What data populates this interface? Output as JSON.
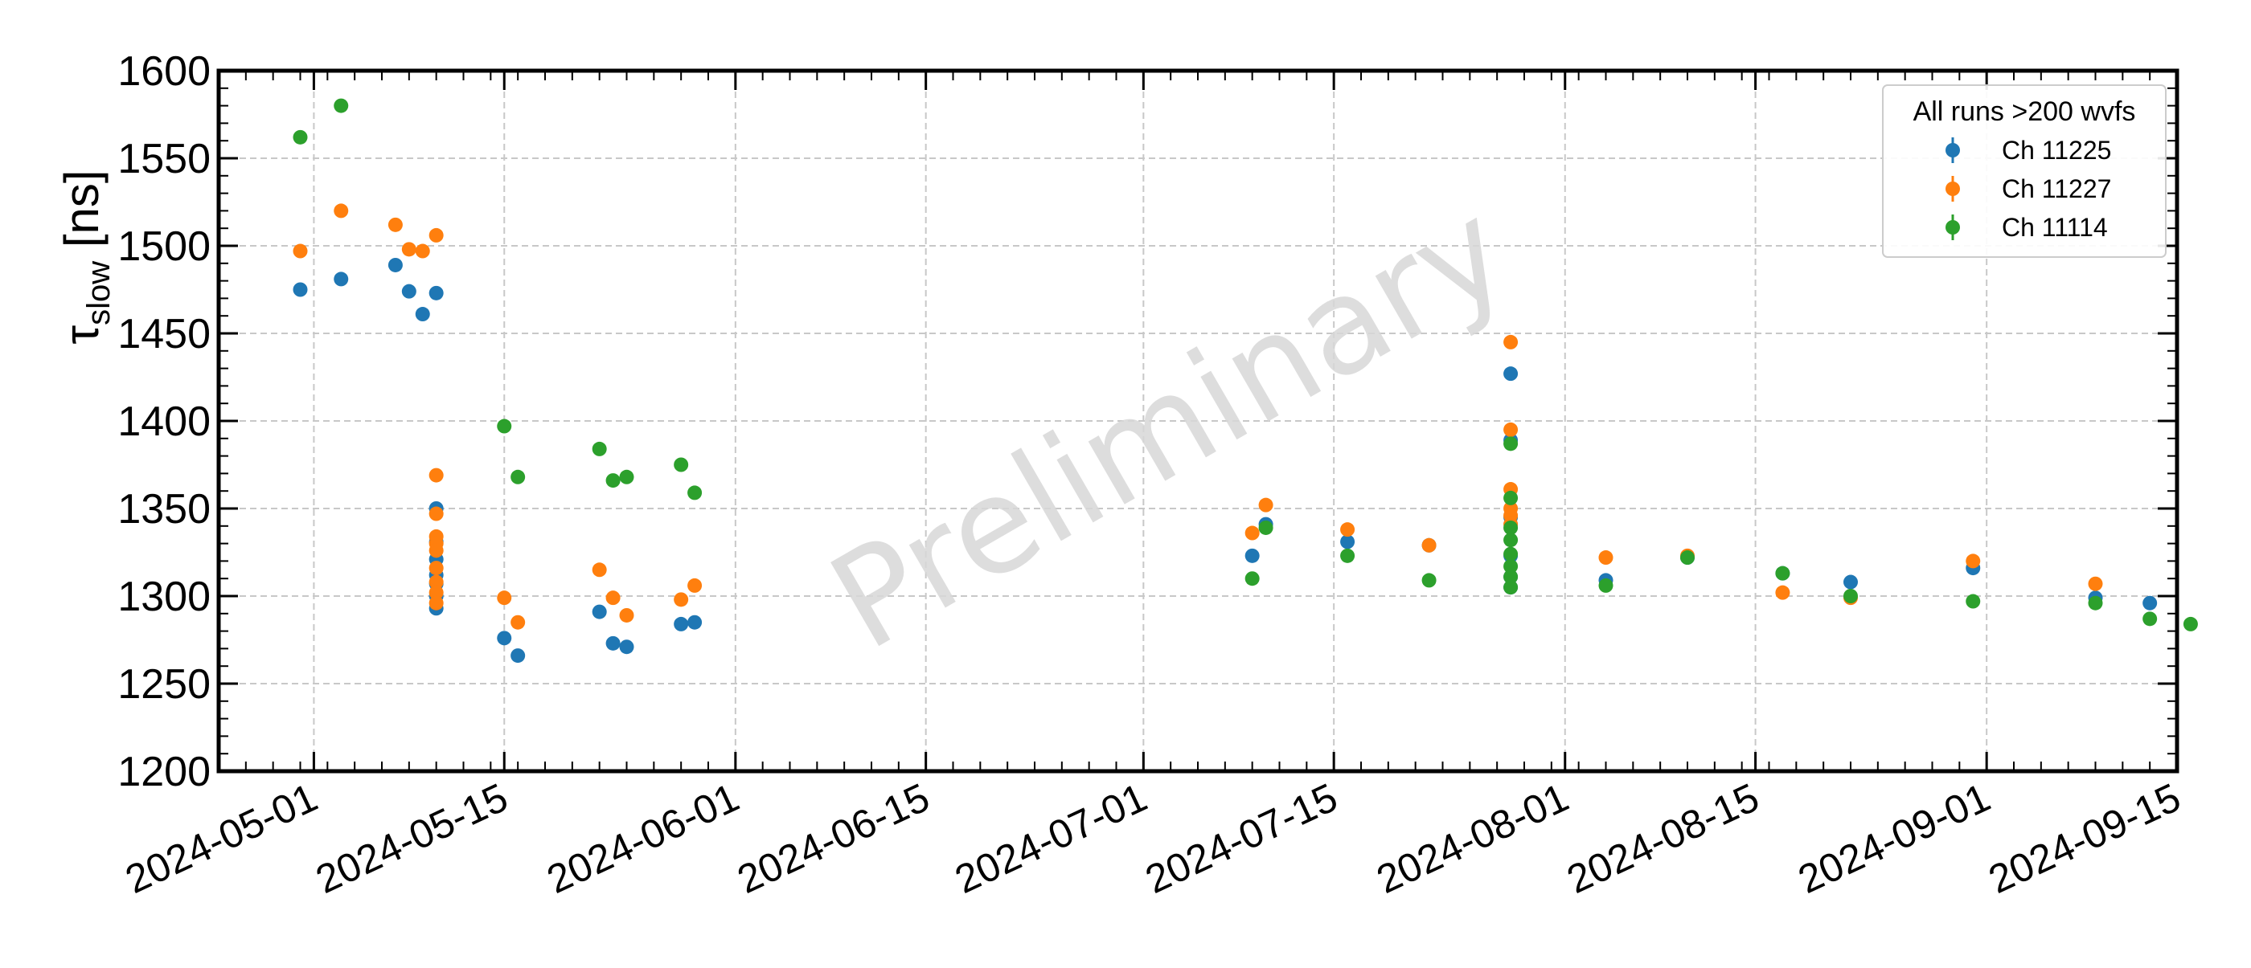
{
  "watermark": "Preliminary",
  "chart_data": {
    "type": "scatter",
    "ylabel": {
      "symbol": "τ",
      "subscript": "slow",
      "unit": "[ns]"
    },
    "ylim": [
      1200,
      1600
    ],
    "yticks": [
      1200,
      1250,
      1300,
      1350,
      1400,
      1450,
      1500,
      1550,
      1600
    ],
    "xlim": [
      "2024-04-24",
      "2024-09-15"
    ],
    "xticks": [
      "2024-05-01",
      "2024-05-15",
      "2024-06-01",
      "2024-06-15",
      "2024-07-01",
      "2024-07-15",
      "2024-08-01",
      "2024-08-15",
      "2024-09-01",
      "2024-09-15"
    ],
    "grid": true,
    "legend": {
      "title": "All runs >200 wvfs",
      "position": "top-right"
    },
    "series": [
      {
        "name": "Ch 11225",
        "color": "#1f77b4",
        "points": [
          [
            "2024-04-30",
            1475
          ],
          [
            "2024-05-03",
            1481
          ],
          [
            "2024-05-07",
            1489
          ],
          [
            "2024-05-08",
            1474
          ],
          [
            "2024-05-09",
            1461
          ],
          [
            "2024-05-10",
            1473
          ],
          [
            "2024-05-10",
            1350
          ],
          [
            "2024-05-10",
            1331
          ],
          [
            "2024-05-10",
            1321
          ],
          [
            "2024-05-10",
            1312
          ],
          [
            "2024-05-10",
            1307
          ],
          [
            "2024-05-10",
            1300
          ],
          [
            "2024-05-10",
            1293
          ],
          [
            "2024-05-15",
            1276
          ],
          [
            "2024-05-16",
            1266
          ],
          [
            "2024-05-22",
            1291
          ],
          [
            "2024-05-23",
            1273
          ],
          [
            "2024-05-24",
            1271
          ],
          [
            "2024-05-28",
            1284
          ],
          [
            "2024-05-29",
            1285
          ],
          [
            "2024-07-09",
            1323
          ],
          [
            "2024-07-10",
            1341
          ],
          [
            "2024-07-16",
            1331
          ],
          [
            "2024-07-22",
            1329
          ],
          [
            "2024-07-28",
            1427
          ],
          [
            "2024-07-28",
            1389
          ],
          [
            "2024-07-28",
            1345
          ],
          [
            "2024-07-28",
            1323
          ],
          [
            "2024-07-28",
            1311
          ],
          [
            "2024-07-28",
            1305
          ],
          [
            "2024-08-04",
            1309
          ],
          [
            "2024-08-10",
            1322
          ],
          [
            "2024-08-17",
            1313
          ],
          [
            "2024-08-22",
            1308
          ],
          [
            "2024-08-31",
            1316
          ],
          [
            "2024-09-09",
            1299
          ],
          [
            "2024-09-13",
            1296
          ]
        ]
      },
      {
        "name": "Ch 11227",
        "color": "#ff7f0e",
        "points": [
          [
            "2024-04-30",
            1497
          ],
          [
            "2024-05-03",
            1520
          ],
          [
            "2024-05-07",
            1512
          ],
          [
            "2024-05-08",
            1498
          ],
          [
            "2024-05-09",
            1497
          ],
          [
            "2024-05-10",
            1506
          ],
          [
            "2024-05-10",
            1369
          ],
          [
            "2024-05-10",
            1347
          ],
          [
            "2024-05-10",
            1334
          ],
          [
            "2024-05-10",
            1330
          ],
          [
            "2024-05-10",
            1326
          ],
          [
            "2024-05-10",
            1316
          ],
          [
            "2024-05-10",
            1308
          ],
          [
            "2024-05-10",
            1302
          ],
          [
            "2024-05-10",
            1296
          ],
          [
            "2024-05-15",
            1299
          ],
          [
            "2024-05-16",
            1285
          ],
          [
            "2024-05-22",
            1315
          ],
          [
            "2024-05-23",
            1299
          ],
          [
            "2024-05-24",
            1289
          ],
          [
            "2024-05-28",
            1298
          ],
          [
            "2024-05-29",
            1306
          ],
          [
            "2024-07-09",
            1336
          ],
          [
            "2024-07-10",
            1352
          ],
          [
            "2024-07-16",
            1338
          ],
          [
            "2024-07-22",
            1329
          ],
          [
            "2024-07-28",
            1445
          ],
          [
            "2024-07-28",
            1395
          ],
          [
            "2024-07-28",
            1361
          ],
          [
            "2024-07-28",
            1350
          ],
          [
            "2024-07-28",
            1346
          ],
          [
            "2024-07-28",
            1341
          ],
          [
            "2024-08-04",
            1322
          ],
          [
            "2024-08-10",
            1323
          ],
          [
            "2024-08-17",
            1302
          ],
          [
            "2024-08-22",
            1299
          ],
          [
            "2024-08-31",
            1320
          ],
          [
            "2024-09-09",
            1307
          ]
        ]
      },
      {
        "name": "Ch 11114",
        "color": "#2ca02c",
        "points": [
          [
            "2024-04-30",
            1562
          ],
          [
            "2024-05-03",
            1580
          ],
          [
            "2024-05-15",
            1397
          ],
          [
            "2024-05-16",
            1368
          ],
          [
            "2024-05-22",
            1384
          ],
          [
            "2024-05-23",
            1366
          ],
          [
            "2024-05-24",
            1368
          ],
          [
            "2024-05-28",
            1375
          ],
          [
            "2024-05-29",
            1359
          ],
          [
            "2024-07-09",
            1310
          ],
          [
            "2024-07-10",
            1339
          ],
          [
            "2024-07-16",
            1323
          ],
          [
            "2024-07-22",
            1309
          ],
          [
            "2024-07-28",
            1387
          ],
          [
            "2024-07-28",
            1356
          ],
          [
            "2024-07-28",
            1339
          ],
          [
            "2024-07-28",
            1332
          ],
          [
            "2024-07-28",
            1324
          ],
          [
            "2024-07-28",
            1317
          ],
          [
            "2024-07-28",
            1311
          ],
          [
            "2024-07-28",
            1305
          ],
          [
            "2024-08-04",
            1306
          ],
          [
            "2024-08-10",
            1322
          ],
          [
            "2024-08-17",
            1313
          ],
          [
            "2024-08-22",
            1300
          ],
          [
            "2024-08-31",
            1297
          ],
          [
            "2024-09-09",
            1296
          ],
          [
            "2024-09-13",
            1287
          ],
          [
            "2024-09-16",
            1284
          ]
        ]
      }
    ]
  }
}
